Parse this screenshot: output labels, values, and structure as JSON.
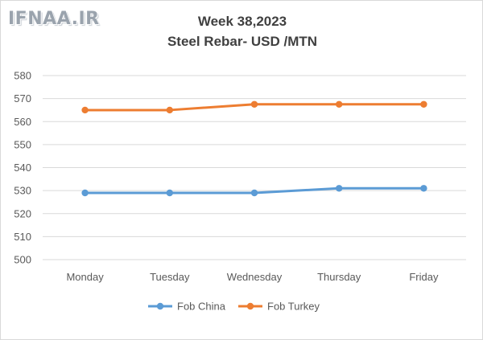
{
  "logo": {
    "text": "IFNAA.IR"
  },
  "colors": {
    "china": "#5b9bd5",
    "turkey": "#ed7d31",
    "grid": "#d9d9d9",
    "text": "#595959"
  },
  "chart_data": {
    "type": "line",
    "title": "Week 38,2023",
    "subtitle": "Steel Rebar- USD /MTN",
    "xlabel": "",
    "ylabel": "",
    "categories": [
      "Monday",
      "Tuesday",
      "Wednesday",
      "Thursday",
      "Friday"
    ],
    "y_ticks": [
      "500",
      "510",
      "520",
      "530",
      "540",
      "550",
      "560",
      "570",
      "580"
    ],
    "ylim": [
      500,
      580
    ],
    "grid": true,
    "legend_position": "bottom",
    "series": [
      {
        "name": "Fob China",
        "values": [
          529,
          529,
          529,
          531,
          531
        ]
      },
      {
        "name": "Fob Turkey",
        "values": [
          565,
          565,
          567.5,
          567.5,
          567.5
        ]
      }
    ]
  }
}
